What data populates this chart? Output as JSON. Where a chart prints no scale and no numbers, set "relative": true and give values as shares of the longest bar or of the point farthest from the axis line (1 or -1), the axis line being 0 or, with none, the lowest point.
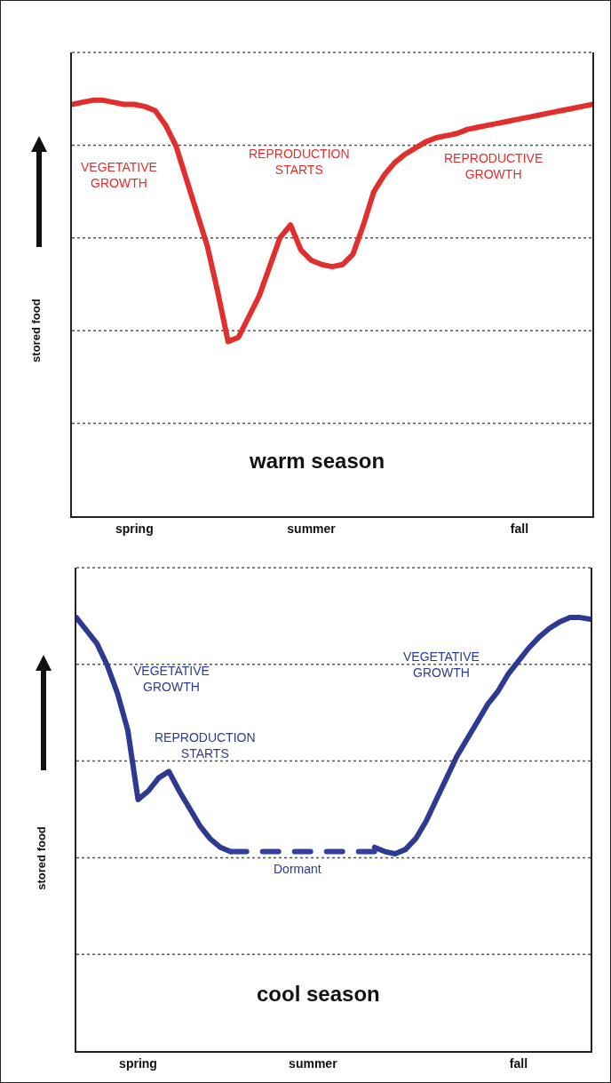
{
  "chart_data": [
    {
      "type": "line",
      "title": "warm season",
      "ylabel": "stored food",
      "relative": true,
      "grid": "y",
      "categories": [
        null,
        null,
        null,
        null,
        null,
        null,
        "spring",
        null,
        null,
        null,
        null,
        null,
        null,
        null,
        null,
        null,
        null,
        null,
        null,
        null,
        null,
        null,
        null,
        "summer",
        null,
        null,
        null,
        null,
        null,
        null,
        null,
        null,
        null,
        null,
        null,
        null,
        null,
        null,
        null,
        null,
        null,
        null,
        null,
        "fall",
        null,
        null,
        null,
        null,
        null,
        null,
        null
      ],
      "series": [
        {
          "color": "#e0302e",
          "line_style": "solid",
          "values": [
            0.99,
            0.995,
            1.0,
            1.0,
            0.995,
            0.99,
            0.99,
            0.985,
            0.975,
            0.94,
            0.89,
            0.81,
            0.73,
            0.65,
            0.54,
            0.42,
            0.43,
            0.48,
            0.53,
            0.6,
            0.67,
            0.7,
            0.64,
            0.615,
            0.605,
            0.6,
            0.605,
            0.63,
            0.7,
            0.78,
            0.82,
            0.85,
            0.87,
            0.885,
            0.9,
            0.91,
            0.915,
            0.92,
            0.93,
            0.935,
            0.94,
            0.945,
            0.95,
            0.955,
            0.96,
            0.965,
            0.97,
            0.975,
            0.98,
            0.985,
            0.99
          ]
        }
      ],
      "annotations": [
        "VEGETATIVE\nGROWTH",
        "REPRODUCTION\nSTARTS",
        "REPRODUCTIVE\nGROWTH"
      ]
    },
    {
      "type": "line",
      "title": "cool season",
      "ylabel": "stored food",
      "relative": true,
      "grid": "y",
      "categories": [
        null,
        null,
        null,
        null,
        null,
        null,
        "spring",
        null,
        null,
        null,
        null,
        null,
        null,
        null,
        null,
        null,
        null,
        null,
        null,
        null,
        null,
        null,
        null,
        "summer",
        null,
        null,
        null,
        null,
        null,
        null,
        null,
        null,
        null,
        null,
        null,
        null,
        null,
        null,
        null,
        null,
        null,
        null,
        null,
        "fall",
        null,
        null,
        null,
        null,
        null,
        null,
        null
      ],
      "series": [
        {
          "color": "#2e3a92",
          "line_style": "solid",
          "values": [
            1.0,
            0.97,
            0.94,
            0.89,
            0.825,
            0.74,
            0.58,
            0.6,
            0.63,
            0.645,
            0.6,
            0.56,
            0.52,
            0.49,
            0.47,
            0.46,
            null,
            null,
            null,
            null,
            null,
            null,
            null,
            null,
            null,
            null,
            null,
            null,
            null,
            0.47,
            0.46,
            0.455,
            0.465,
            0.49,
            0.53,
            0.58,
            0.63,
            0.68,
            0.72,
            0.76,
            0.8,
            0.83,
            0.87,
            0.9,
            0.93,
            0.955,
            0.975,
            0.99,
            1.0,
            1.0,
            0.996
          ]
        },
        {
          "color": "#34409c",
          "line_style": "dashed",
          "values": [
            null,
            null,
            null,
            null,
            null,
            null,
            null,
            null,
            null,
            null,
            null,
            null,
            null,
            null,
            null,
            0.46,
            0.46,
            0.46,
            0.46,
            0.46,
            0.46,
            0.46,
            0.46,
            0.46,
            0.46,
            0.46,
            0.46,
            0.46,
            0.46,
            0.46,
            null,
            null,
            null,
            null,
            null,
            null,
            null,
            null,
            null,
            null,
            null,
            null,
            null,
            null,
            null,
            null,
            null,
            null,
            null,
            null,
            null
          ]
        }
      ],
      "annotations": [
        "VEGETATIVE\nGROWTH",
        "REPRODUCTION\nSTARTS",
        "Dormant",
        "VEGETATIVE\nGROWTH"
      ]
    }
  ]
}
